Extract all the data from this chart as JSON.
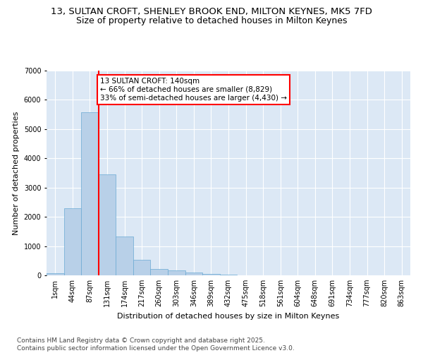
{
  "title_line1": "13, SULTAN CROFT, SHENLEY BROOK END, MILTON KEYNES, MK5 7FD",
  "title_line2": "Size of property relative to detached houses in Milton Keynes",
  "xlabel": "Distribution of detached houses by size in Milton Keynes",
  "ylabel": "Number of detached properties",
  "categories": [
    "1sqm",
    "44sqm",
    "87sqm",
    "131sqm",
    "174sqm",
    "217sqm",
    "260sqm",
    "303sqm",
    "346sqm",
    "389sqm",
    "432sqm",
    "475sqm",
    "518sqm",
    "561sqm",
    "604sqm",
    "648sqm",
    "691sqm",
    "734sqm",
    "777sqm",
    "820sqm",
    "863sqm"
  ],
  "values": [
    80,
    2300,
    5570,
    3450,
    1320,
    520,
    210,
    175,
    100,
    55,
    30,
    0,
    0,
    0,
    0,
    0,
    0,
    0,
    0,
    0,
    0
  ],
  "bar_color": "#b8d0e8",
  "bar_edge_color": "#6aaad4",
  "vline_color": "red",
  "annotation_text": "13 SULTAN CROFT: 140sqm\n← 66% of detached houses are smaller (8,829)\n33% of semi-detached houses are larger (4,430) →",
  "annotation_box_color": "white",
  "annotation_box_edge": "red",
  "ylim": [
    0,
    7000
  ],
  "yticks": [
    0,
    1000,
    2000,
    3000,
    4000,
    5000,
    6000,
    7000
  ],
  "bg_color": "#dce8f5",
  "grid_color": "white",
  "footer": "Contains HM Land Registry data © Crown copyright and database right 2025.\nContains public sector information licensed under the Open Government Licence v3.0.",
  "title_fontsize": 9.5,
  "subtitle_fontsize": 9,
  "axis_label_fontsize": 8,
  "tick_fontsize": 7,
  "annotation_fontsize": 7.5,
  "footer_fontsize": 6.5
}
